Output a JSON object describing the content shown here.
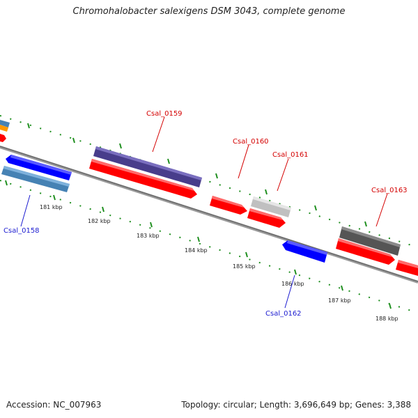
{
  "title": "Chromohalobacter salexigens DSM 3043, complete genome",
  "accession": "Accession: NC_007963",
  "summary": "Topology: circular; Length: 3,696,649 bp; Genes: 3,388",
  "scale_labels": [
    "181 kbp",
    "182 kbp",
    "183 kbp",
    "184 kbp",
    "185 kbp",
    "186 kbp",
    "187 kbp",
    "188 kbp"
  ],
  "genes": [
    {
      "name": "Csal_0158",
      "strand": "reverse",
      "color": "#4682b4"
    },
    {
      "name": "Csal_0159",
      "strand": "forward",
      "color": "#483d8b"
    },
    {
      "name": "Csal_0160",
      "strand": "forward",
      "color": "#ff0000"
    },
    {
      "name": "Csal_0161",
      "strand": "forward",
      "color": "#c0c0c0"
    },
    {
      "name": "Csal_0162",
      "strand": "reverse",
      "color": "#0000ff"
    },
    {
      "name": "Csal_0163",
      "strand": "forward",
      "color": "#555555"
    }
  ],
  "colors": {
    "tick": "#1f8f1f",
    "backbone": "#808080",
    "forward_label": "#d40000",
    "reverse_label": "#1a1ad0"
  }
}
